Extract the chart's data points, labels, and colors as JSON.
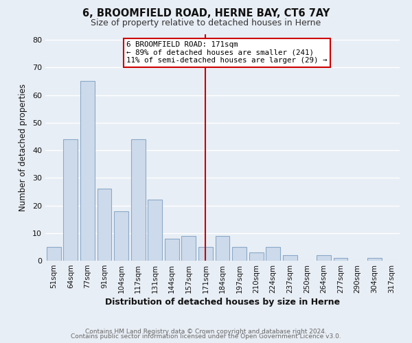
{
  "title": "6, BROOMFIELD ROAD, HERNE BAY, CT6 7AY",
  "subtitle": "Size of property relative to detached houses in Herne",
  "xlabel": "Distribution of detached houses by size in Herne",
  "ylabel": "Number of detached properties",
  "footer_line1": "Contains HM Land Registry data © Crown copyright and database right 2024.",
  "footer_line2": "Contains public sector information licensed under the Open Government Licence v3.0.",
  "bar_labels": [
    "51sqm",
    "64sqm",
    "77sqm",
    "91sqm",
    "104sqm",
    "117sqm",
    "131sqm",
    "144sqm",
    "157sqm",
    "171sqm",
    "184sqm",
    "197sqm",
    "210sqm",
    "224sqm",
    "237sqm",
    "250sqm",
    "264sqm",
    "277sqm",
    "290sqm",
    "304sqm",
    "317sqm"
  ],
  "bar_values": [
    5,
    44,
    65,
    26,
    18,
    44,
    22,
    8,
    9,
    5,
    9,
    5,
    3,
    5,
    2,
    0,
    2,
    1,
    0,
    1,
    0
  ],
  "bar_color": "#cddaeb",
  "bar_edge_color": "#8aa8c8",
  "reference_line_x_label": "171sqm",
  "reference_line_color": "#cc0000",
  "annotation_title": "6 BROOMFIELD ROAD: 171sqm",
  "annotation_line1": "← 89% of detached houses are smaller (241)",
  "annotation_line2": "11% of semi-detached houses are larger (29) →",
  "annotation_box_facecolor": "#ffffff",
  "annotation_box_edgecolor": "#cc0000",
  "ylim": [
    0,
    82
  ],
  "yticks": [
    0,
    10,
    20,
    30,
    40,
    50,
    60,
    70,
    80
  ],
  "bg_color": "#e8eef5",
  "grid_color": "#ffffff",
  "title_color": "#111111",
  "subtitle_color": "#333333",
  "footer_color": "#666666",
  "axis_label_color": "#111111"
}
